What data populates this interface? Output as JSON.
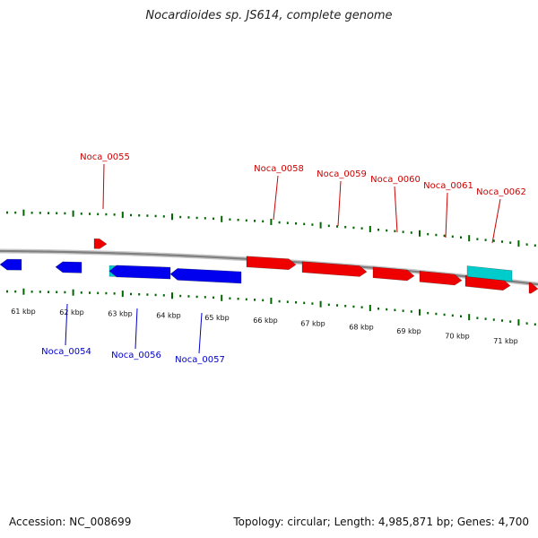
{
  "title": "Nocardioides sp. JS614, complete genome",
  "accession_text": "Accession: NC_008699",
  "summary_text": "Topology: circular; Length: 4,985,871 bp; Genes: 4,700",
  "colors": {
    "forward": "#ee0000",
    "reverse": "#0000ee",
    "rna": "#00cccc",
    "tick": "#006600",
    "backbone": "#808080",
    "label_forward": "#cc0000",
    "label_reverse": "#0000cc"
  },
  "scale_labels": [
    "61 kbp",
    "62 kbp",
    "63 kbp",
    "64 kbp",
    "65 kbp",
    "66 kbp",
    "67 kbp",
    "68 kbp",
    "69 kbp",
    "70 kbp",
    "71 kbp"
  ],
  "forward_gene_labels": [
    "Noca_0055",
    "Noca_0058",
    "Noca_0059",
    "Noca_0060",
    "Noca_0061",
    "Noca_0062"
  ],
  "reverse_gene_labels": [
    "Noca_0054",
    "Noca_0056",
    "Noca_0057"
  ]
}
